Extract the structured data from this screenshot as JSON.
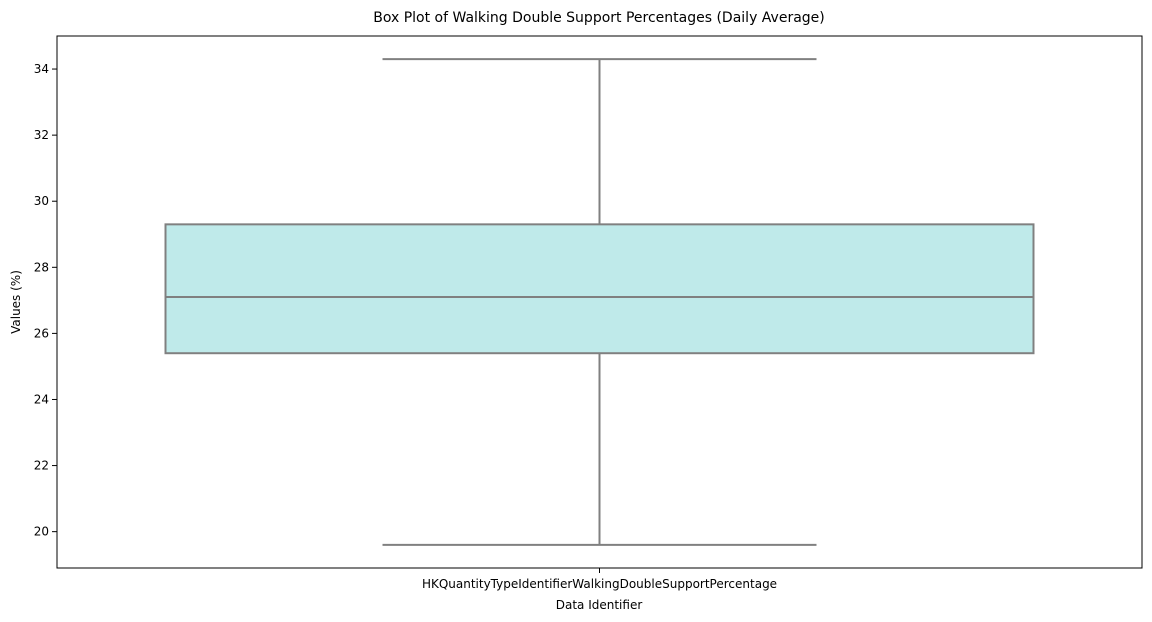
{
  "chart_data": {
    "type": "box",
    "title": "Box Plot of Walking Double Support Percentages (Daily Average)",
    "xlabel": "Data Identifier",
    "ylabel": "Values (%)",
    "categories": [
      "HKQuantityTypeIdentifierWalkingDoubleSupportPercentage"
    ],
    "boxes": [
      {
        "category": "HKQuantityTypeIdentifierWalkingDoubleSupportPercentage",
        "whisker_low": 19.6,
        "q1": 25.4,
        "median": 27.1,
        "q3": 29.3,
        "whisker_high": 34.3
      }
    ],
    "ylim": [
      18.9,
      35.0
    ],
    "yticks": [
      20,
      22,
      24,
      26,
      28,
      30,
      32,
      34
    ],
    "grid": false,
    "legend": "none",
    "colors": {
      "box_fill": "#bfeaea",
      "box_edge": "#808080",
      "axes": "#000000"
    }
  }
}
